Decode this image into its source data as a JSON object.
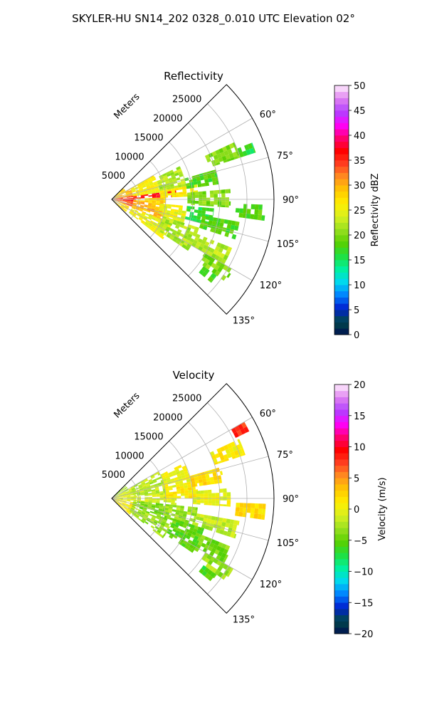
{
  "figure": {
    "title": "SKYLER-HU  SN14_202  0328_0.010 UTC Elevation 02°"
  },
  "chart_data": [
    {
      "type": "heatmap",
      "title": "Reflectivity",
      "projection": "polar-sector",
      "theta_range_deg": [
        45,
        135
      ],
      "r_ylabel": "Meters",
      "r_ticks": [
        5000,
        10000,
        15000,
        20000,
        25000
      ],
      "r_tick_labels": [
        "5000",
        "10000",
        "15000",
        "20000",
        "25000"
      ],
      "r_max": 30000,
      "theta_ticks": [
        60,
        75,
        90,
        105,
        120,
        135
      ],
      "theta_tick_labels": [
        "60°",
        "75°",
        "90°",
        "105°",
        "120°",
        "135°"
      ],
      "grid": true,
      "colorbar": {
        "label": "Reflectivity dBZ",
        "range": [
          0,
          50
        ],
        "ticks": [
          0,
          5,
          10,
          15,
          20,
          25,
          30,
          35,
          40,
          45,
          50
        ],
        "tick_labels": [
          "0",
          "5",
          "10",
          "15",
          "20",
          "25",
          "30",
          "35",
          "40",
          "45",
          "50"
        ],
        "levels": 40,
        "stops": [
          "#001050",
          "#004a4a",
          "#0020d0",
          "#0080ff",
          "#00d8f0",
          "#00f0a0",
          "#20e040",
          "#58d000",
          "#98e020",
          "#d8f020",
          "#ffee00",
          "#ffc800",
          "#ff9020",
          "#ff4020",
          "#ff0000",
          "#ff0070",
          "#ff00ff",
          "#b040ff",
          "#e080f0",
          "#fff0ff"
        ]
      },
      "field": [
        {
          "theta": [
            46,
            60
          ],
          "r": [
            0,
            3000
          ],
          "value": 28
        },
        {
          "theta": [
            60,
            80
          ],
          "r": [
            0,
            4000
          ],
          "value": 30
        },
        {
          "theta": [
            80,
            88
          ],
          "r": [
            0,
            4500
          ],
          "value": 34
        },
        {
          "theta": [
            88,
            95
          ],
          "r": [
            0,
            4500
          ],
          "value": 36
        },
        {
          "theta": [
            95,
            110
          ],
          "r": [
            0,
            4000
          ],
          "value": 33
        },
        {
          "theta": [
            110,
            132
          ],
          "r": [
            0,
            3500
          ],
          "value": 27
        },
        {
          "theta": [
            60,
            82
          ],
          "r": [
            4000,
            9000
          ],
          "value": 26
        },
        {
          "theta": [
            82,
            88
          ],
          "r": [
            4000,
            12000
          ],
          "value": 36
        },
        {
          "theta": [
            88,
            95
          ],
          "r": [
            4000,
            10000
          ],
          "value": 28
        },
        {
          "theta": [
            95,
            112
          ],
          "r": [
            4000,
            10000
          ],
          "value": 30
        },
        {
          "theta": [
            112,
            128
          ],
          "r": [
            4000,
            12000
          ],
          "value": 25
        },
        {
          "theta": [
            64,
            80
          ],
          "r": [
            9000,
            14000
          ],
          "value": 22
        },
        {
          "theta": [
            80,
            88
          ],
          "r": [
            9000,
            16000
          ],
          "value": 26
        },
        {
          "theta": [
            95,
            108
          ],
          "r": [
            9000,
            14000
          ],
          "value": 25
        },
        {
          "theta": [
            108,
            124
          ],
          "r": [
            10000,
            17000
          ],
          "value": 22
        },
        {
          "theta": [
            74,
            82
          ],
          "r": [
            14000,
            20000
          ],
          "value": 18
        },
        {
          "theta": [
            65,
            72
          ],
          "r": [
            19000,
            25000
          ],
          "value": 20
        },
        {
          "theta": [
            85,
            94
          ],
          "r": [
            14000,
            22000
          ],
          "value": 20
        },
        {
          "theta": [
            95,
            105
          ],
          "r": [
            14000,
            19000
          ],
          "value": 16
        },
        {
          "theta": [
            100,
            108
          ],
          "r": [
            17000,
            24000
          ],
          "value": 18
        },
        {
          "theta": [
            112,
            122
          ],
          "r": [
            17000,
            24000
          ],
          "value": 22
        },
        {
          "theta": [
            120,
            126
          ],
          "r": [
            20000,
            26000
          ],
          "value": 20
        },
        {
          "theta": [
            92,
            98
          ],
          "r": [
            23000,
            28500
          ],
          "value": 18
        },
        {
          "theta": [
            68,
            72
          ],
          "r": [
            25000,
            28000
          ],
          "value": 16
        },
        {
          "theta": [
            126,
            130
          ],
          "r": [
            21000,
            24000
          ],
          "value": 18
        }
      ]
    },
    {
      "type": "heatmap",
      "title": "Velocity",
      "projection": "polar-sector",
      "theta_range_deg": [
        45,
        135
      ],
      "r_ylabel": "Meters",
      "r_ticks": [
        5000,
        10000,
        15000,
        20000,
        25000
      ],
      "r_tick_labels": [
        "5000",
        "10000",
        "15000",
        "20000",
        "25000"
      ],
      "r_max": 30000,
      "theta_ticks": [
        60,
        75,
        90,
        105,
        120,
        135
      ],
      "theta_tick_labels": [
        "60°",
        "75°",
        "90°",
        "105°",
        "120°",
        "135°"
      ],
      "grid": true,
      "colorbar": {
        "label": "Velocity (m/s)",
        "range": [
          -20,
          20
        ],
        "ticks": [
          -20,
          -15,
          -10,
          -5,
          0,
          5,
          10,
          15,
          20
        ],
        "tick_labels": [
          "−20",
          "−15",
          "−10",
          "−5",
          "0",
          "5",
          "10",
          "15",
          "20"
        ],
        "levels": 40,
        "stops": [
          "#001050",
          "#004a4a",
          "#0020d0",
          "#0080ff",
          "#00d8f0",
          "#00f0a0",
          "#20e040",
          "#58d000",
          "#98e020",
          "#d8f020",
          "#ffee00",
          "#ffc800",
          "#ff9020",
          "#ff4020",
          "#ff0000",
          "#ff0070",
          "#ff00ff",
          "#b040ff",
          "#e080f0",
          "#fff0ff"
        ]
      },
      "field": [
        {
          "theta": [
            46,
            62
          ],
          "r": [
            0,
            3500
          ],
          "value": -3
        },
        {
          "theta": [
            62,
            100
          ],
          "r": [
            0,
            4500
          ],
          "value": -1
        },
        {
          "theta": [
            100,
            132
          ],
          "r": [
            0,
            4500
          ],
          "value": 1
        },
        {
          "theta": [
            60,
            84
          ],
          "r": [
            4000,
            10000
          ],
          "value": -2
        },
        {
          "theta": [
            84,
            96
          ],
          "r": [
            4000,
            12000
          ],
          "value": -1
        },
        {
          "theta": [
            96,
            112
          ],
          "r": [
            4000,
            11000
          ],
          "value": -4
        },
        {
          "theta": [
            112,
            128
          ],
          "r": [
            4000,
            12000
          ],
          "value": -3
        },
        {
          "theta": [
            64,
            80
          ],
          "r": [
            10000,
            15000
          ],
          "value": 0
        },
        {
          "theta": [
            80,
            90
          ],
          "r": [
            10000,
            16000
          ],
          "value": 1
        },
        {
          "theta": [
            96,
            110
          ],
          "r": [
            10000,
            16000
          ],
          "value": -3
        },
        {
          "theta": [
            108,
            124
          ],
          "r": [
            12000,
            18000
          ],
          "value": -5
        },
        {
          "theta": [
            74,
            82
          ],
          "r": [
            15000,
            21000
          ],
          "value": 2
        },
        {
          "theta": [
            65,
            72
          ],
          "r": [
            20000,
            26000
          ],
          "value": 1
        },
        {
          "theta": [
            85,
            94
          ],
          "r": [
            15000,
            22000
          ],
          "value": 0
        },
        {
          "theta": [
            100,
            108
          ],
          "r": [
            16000,
            24000
          ],
          "value": -2
        },
        {
          "theta": [
            112,
            122
          ],
          "r": [
            18000,
            24000
          ],
          "value": -4
        },
        {
          "theta": [
            120,
            126
          ],
          "r": [
            20000,
            26000
          ],
          "value": -3
        },
        {
          "theta": [
            92,
            98
          ],
          "r": [
            23000,
            28500
          ],
          "value": 2
        },
        {
          "theta": [
            60,
            64
          ],
          "r": [
            25500,
            29000
          ],
          "value": 8
        },
        {
          "theta": [
            126,
            130
          ],
          "r": [
            21000,
            24000
          ],
          "value": -6
        }
      ]
    }
  ]
}
